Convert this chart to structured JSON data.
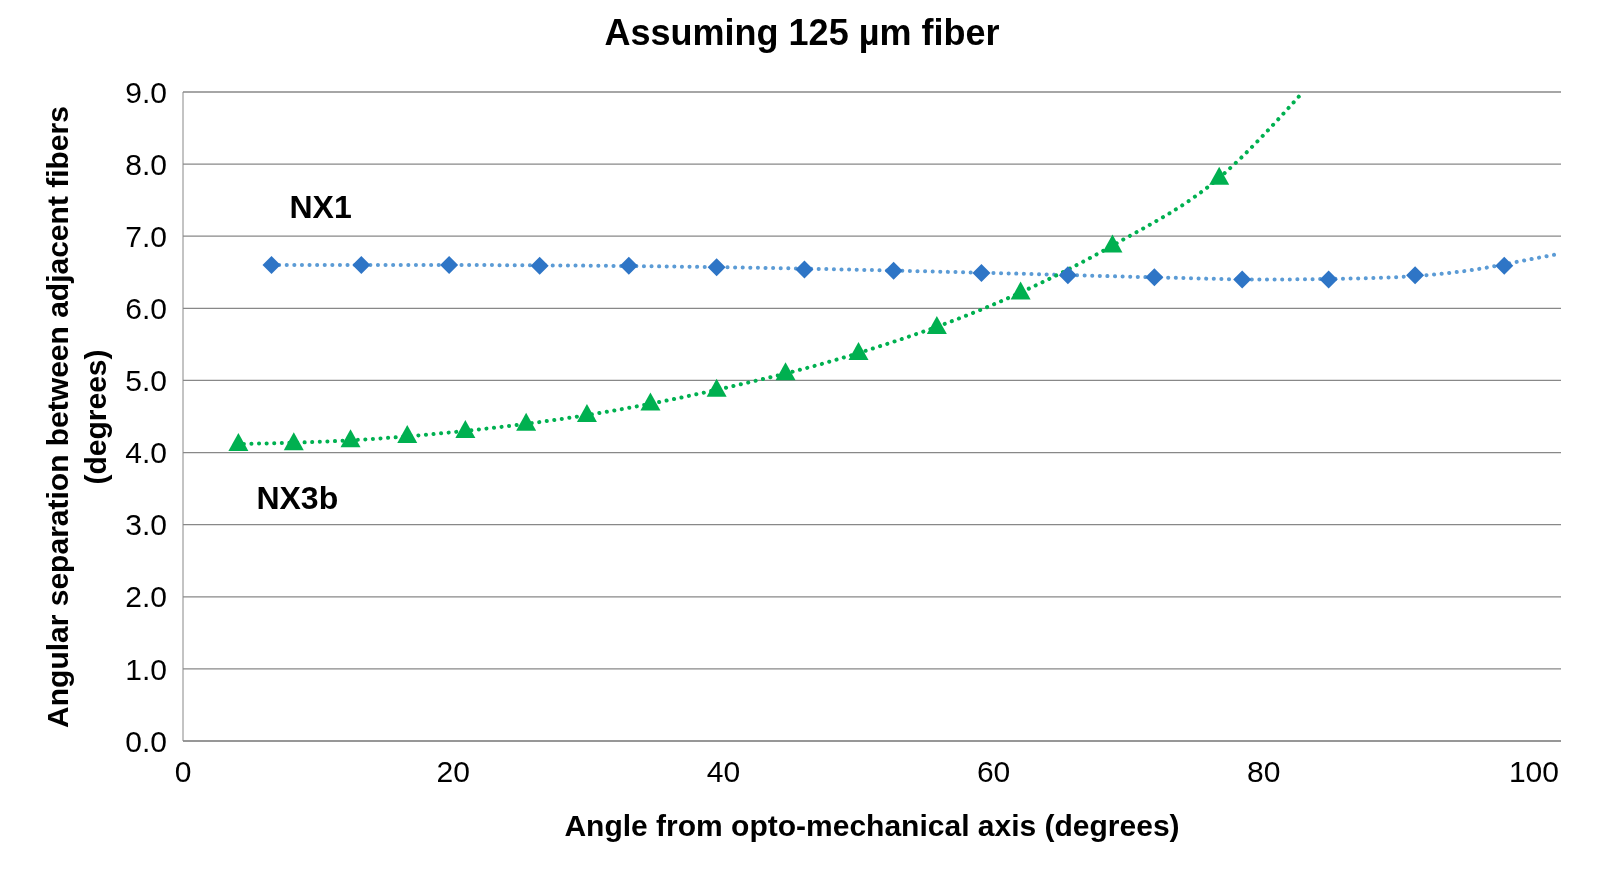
{
  "chart_data": {
    "type": "scatter",
    "title": "Assuming 125 µm fiber",
    "xlabel": "Angle from opto-mechanical axis (degrees)",
    "ylabel": "Angular separation between adjacent fibers (degrees)",
    "xlim": [
      0,
      102
    ],
    "xticks": [
      0,
      20,
      40,
      60,
      80,
      100
    ],
    "ylim": [
      0,
      9
    ],
    "yticks": [
      {
        "value": 0,
        "label": "0.0"
      },
      {
        "value": 1,
        "label": "1.0"
      },
      {
        "value": 2,
        "label": "2.0"
      },
      {
        "value": 3,
        "label": "3.0"
      },
      {
        "value": 4,
        "label": "4.0"
      },
      {
        "value": 5,
        "label": "5.0"
      },
      {
        "value": 6,
        "label": "6.0"
      },
      {
        "value": 7,
        "label": "7.0"
      },
      {
        "value": 8,
        "label": "8.0"
      },
      {
        "value": 9,
        "label": "9.0"
      }
    ],
    "grid": "y",
    "legend": false,
    "series": [
      {
        "name": "NX1",
        "marker": "diamond",
        "color": "#2e75c6",
        "x": [
          6.55,
          13.2,
          19.7,
          26.4,
          33.0,
          39.5,
          46.0,
          52.6,
          59.1,
          65.5,
          71.9,
          78.4,
          84.8,
          91.2,
          97.8
        ],
        "values": [
          6.6,
          6.6,
          6.6,
          6.59,
          6.59,
          6.57,
          6.54,
          6.52,
          6.49,
          6.46,
          6.43,
          6.4,
          6.4,
          6.46,
          6.59
        ]
      },
      {
        "name": "NX3b",
        "marker": "triangle",
        "color": "#00b050",
        "x": [
          4.1,
          8.2,
          12.4,
          16.6,
          20.9,
          25.4,
          29.9,
          34.6,
          39.5,
          44.6,
          50.0,
          55.8,
          62.0,
          68.8,
          76.7
        ],
        "values": [
          4.12,
          4.13,
          4.17,
          4.23,
          4.3,
          4.4,
          4.52,
          4.68,
          4.87,
          5.1,
          5.38,
          5.74,
          6.22,
          6.87,
          7.81
        ]
      },
      {
        "type": "line",
        "line_style": "dotted",
        "marker": "none",
        "color": "#5b9bd5",
        "x": [
          6.55,
          20,
          40,
          60,
          72,
          80,
          88,
          95,
          100,
          102
        ],
        "values": [
          6.6,
          6.6,
          6.57,
          6.49,
          6.43,
          6.4,
          6.42,
          6.52,
          6.69,
          6.76
        ]
      },
      {
        "type": "line",
        "line_style": "dotted",
        "marker": "none",
        "color": "#00b050",
        "x": [
          4.5,
          12.4,
          20.9,
          29.9,
          39.5,
          50.0,
          62.0,
          68.8,
          76.7,
          82.9
        ],
        "values": [
          4.12,
          4.17,
          4.3,
          4.52,
          4.87,
          5.38,
          6.22,
          6.87,
          7.81,
          9.0
        ]
      }
    ]
  }
}
